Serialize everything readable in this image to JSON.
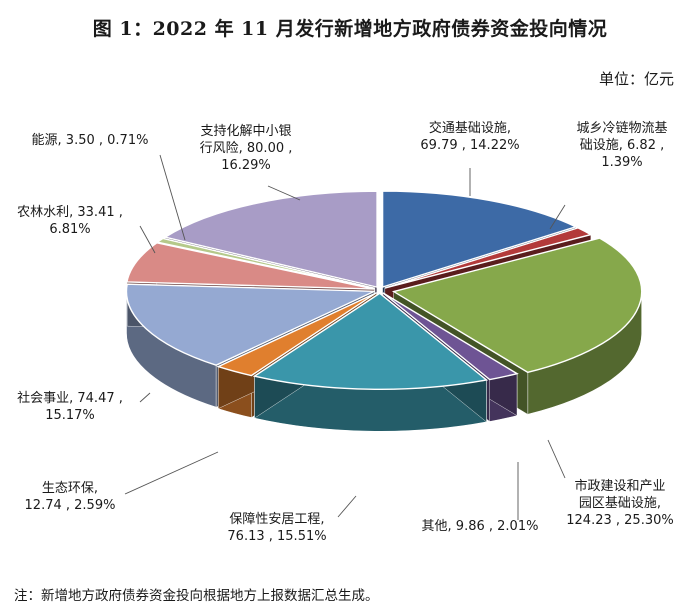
{
  "title": "图 1：2022 年 11 月发行新增地方政府债券资金投向情况",
  "unit_label": "单位：亿元",
  "footnote": "注：新增地方政府债券资金投向根据地方上报数据汇总生成。",
  "chart_data": {
    "type": "pie",
    "style": "3d-exploded",
    "unit": "亿元",
    "slices": [
      {
        "category": "交通基础设施",
        "value": 69.79,
        "percent": "14.22%",
        "color": "#3d6aa6",
        "label_lines": [
          "交通基础设施,",
          "69.79 , 14.22%"
        ]
      },
      {
        "category": "城乡冷链物流基础设施",
        "value": 6.82,
        "percent": "1.39%",
        "color": "#b33a3a",
        "label_lines": [
          "城乡冷链物流基",
          "础设施, 6.82 ,",
          "1.39%"
        ]
      },
      {
        "category": "市政建设和产业园区基础设施",
        "value": 124.23,
        "percent": "25.30%",
        "color": "#86a84b",
        "label_lines": [
          "市政建设和产业",
          "园区基础设施,",
          "124.23 , 25.30%"
        ]
      },
      {
        "category": "其他",
        "value": 9.86,
        "percent": "2.01%",
        "color": "#6e5494",
        "label_lines": [
          "其他, 9.86 , 2.01%"
        ]
      },
      {
        "category": "保障性安居工程",
        "value": 76.13,
        "percent": "15.51%",
        "color": "#3a96aa",
        "label_lines": [
          "保障性安居工程,",
          "76.13 , 15.51%"
        ]
      },
      {
        "category": "生态环保",
        "value": 12.74,
        "percent": "2.59%",
        "color": "#e07f2e",
        "label_lines": [
          "生态环保,",
          "12.74 , 2.59%"
        ]
      },
      {
        "category": "社会事业",
        "value": 74.47,
        "percent": "15.17%",
        "color": "#95a9d2",
        "label_lines": [
          "社会事业, 74.47 ,",
          "15.17%"
        ]
      },
      {
        "category": "农林水利",
        "value": 33.41,
        "percent": "6.81%",
        "color": "#d98a86",
        "label_lines": [
          "农林水利, 33.41 ,",
          "6.81%"
        ]
      },
      {
        "category": "能源",
        "value": 3.5,
        "percent": "0.71%",
        "color": "#b5c98a",
        "label_lines": [
          "能源, 3.50 , 0.71%"
        ]
      },
      {
        "category": "支持化解中小银行风险",
        "value": 80.0,
        "percent": "16.29%",
        "color": "#a89cc6",
        "label_lines": [
          "支持化解中小银",
          "行风险, 80.00 ,",
          "16.29%"
        ]
      }
    ]
  }
}
